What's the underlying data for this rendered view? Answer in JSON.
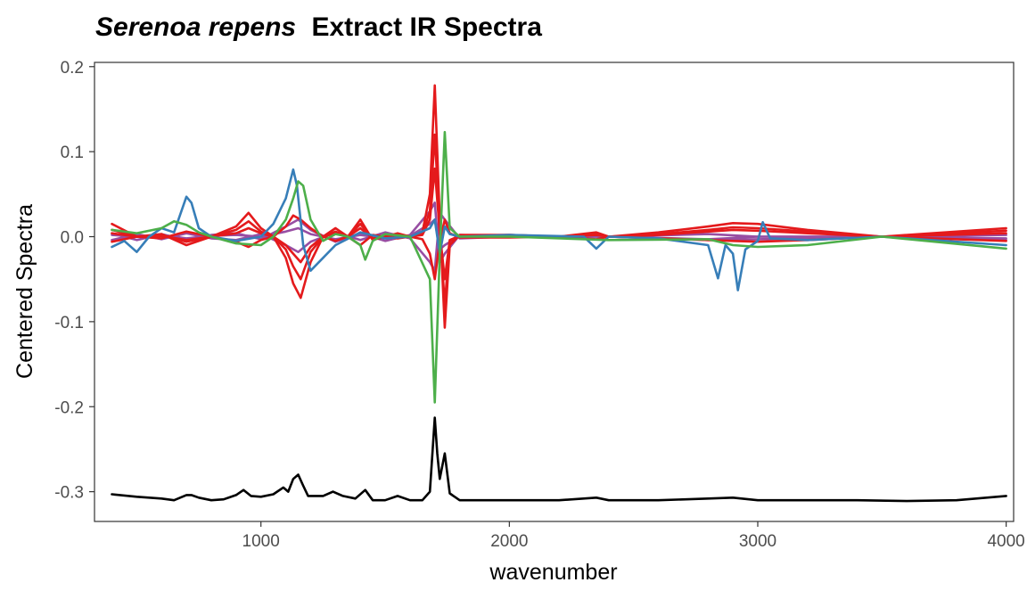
{
  "chart_data": {
    "type": "line",
    "title": {
      "italic": "Serenoa repens",
      "rest": "Extract IR Spectra"
    },
    "xlabel": "wavenumber",
    "ylabel": "Centered Spectra",
    "xlim": [
      330,
      4030
    ],
    "ylim": [
      -0.335,
      0.205
    ],
    "x_ticks": [
      1000,
      2000,
      3000,
      4000
    ],
    "x_tick_labels": [
      "1000",
      "2000",
      "3000",
      "4000"
    ],
    "y_ticks": [
      0.2,
      0.1,
      0.0,
      -0.1,
      -0.2,
      -0.3
    ],
    "y_tick_labels": [
      "0.2",
      "0.1",
      "0.0",
      "-0.1",
      "-0.2",
      "-0.3"
    ],
    "grid": false,
    "legend": "none",
    "palette": {
      "red": "#e41a1c",
      "blue": "#377eb8",
      "green": "#4daf4a",
      "purple": "#984ea3",
      "black": "#000000"
    },
    "series": [
      {
        "color": "purple",
        "x": [
          400,
          500,
          600,
          700,
          800,
          900,
          1000,
          1100,
          1150,
          1200,
          1300,
          1400,
          1500,
          1600,
          1680,
          1700,
          1720,
          1740,
          1800,
          2000,
          2400,
          2800,
          3000,
          3500,
          4000
        ],
        "y": [
          0.004,
          -0.004,
          0.003,
          -0.004,
          0.002,
          0.004,
          -0.003,
          0.012,
          0.02,
          0.008,
          -0.006,
          0.004,
          -0.005,
          0.002,
          0.03,
          0.04,
          -0.03,
          -0.02,
          0.002,
          0.0,
          0.0,
          0.003,
          0.0,
          0.0,
          0.002
        ]
      },
      {
        "color": "purple",
        "x": [
          400,
          500,
          600,
          700,
          800,
          900,
          1000,
          1100,
          1150,
          1200,
          1300,
          1400,
          1500,
          1600,
          1680,
          1700,
          1720,
          1740,
          1800,
          2000,
          2400,
          2800,
          3000,
          3500,
          4000
        ],
        "y": [
          -0.004,
          0.003,
          -0.003,
          0.004,
          -0.002,
          -0.004,
          0.003,
          -0.01,
          -0.018,
          -0.006,
          0.005,
          -0.004,
          0.005,
          -0.002,
          -0.03,
          -0.04,
          0.028,
          0.02,
          -0.002,
          0.0,
          0.0,
          -0.003,
          0.0,
          0.0,
          -0.002
        ]
      },
      {
        "color": "purple",
        "x": [
          400,
          500,
          600,
          700,
          800,
          900,
          1000,
          1100,
          1150,
          1200,
          1300,
          1400,
          1500,
          1600,
          1680,
          1700,
          1720,
          1740,
          1800,
          2000,
          2400,
          2800,
          3000,
          3500,
          4000
        ],
        "y": [
          0.002,
          0.0,
          0.002,
          -0.002,
          0.001,
          0.002,
          0.0,
          0.006,
          0.01,
          0.003,
          -0.003,
          0.002,
          -0.002,
          0.001,
          0.015,
          0.02,
          -0.015,
          -0.01,
          0.001,
          0.0,
          0.0,
          -0.004,
          -0.003,
          0.0,
          -0.004
        ]
      },
      {
        "color": "red",
        "x": [
          400,
          500,
          600,
          700,
          800,
          900,
          950,
          1000,
          1050,
          1100,
          1130,
          1160,
          1200,
          1250,
          1300,
          1350,
          1400,
          1450,
          1500,
          1550,
          1600,
          1650,
          1680,
          1700,
          1720,
          1740,
          1760,
          1800,
          2000,
          2200,
          2350,
          2400,
          2600,
          2800,
          2900,
          3000,
          3200,
          3500,
          4000
        ],
        "y": [
          0.015,
          0.0,
          0.003,
          -0.01,
          0.0,
          0.012,
          0.028,
          0.01,
          0.0,
          -0.025,
          -0.055,
          -0.072,
          -0.03,
          0.0,
          0.01,
          0.0,
          0.02,
          -0.004,
          0.0,
          0.004,
          0.0,
          0.005,
          0.05,
          0.178,
          0.02,
          -0.107,
          -0.01,
          0.002,
          0.002,
          0.0,
          0.005,
          0.0,
          0.005,
          0.012,
          0.016,
          0.015,
          0.008,
          0.0,
          0.01
        ]
      },
      {
        "color": "red",
        "x": [
          400,
          500,
          600,
          700,
          800,
          900,
          950,
          1000,
          1050,
          1100,
          1130,
          1160,
          1200,
          1250,
          1300,
          1350,
          1400,
          1450,
          1500,
          1550,
          1600,
          1650,
          1680,
          1700,
          1720,
          1740,
          1760,
          1800,
          2000,
          2200,
          2350,
          2400,
          2600,
          2800,
          2900,
          3000,
          3200,
          3500,
          4000
        ],
        "y": [
          0.008,
          0.0,
          0.002,
          -0.006,
          0.0,
          0.008,
          0.018,
          0.006,
          0.0,
          -0.015,
          -0.035,
          -0.05,
          -0.018,
          0.0,
          0.006,
          0.0,
          0.015,
          -0.003,
          0.0,
          0.003,
          0.0,
          0.003,
          0.03,
          0.12,
          0.01,
          -0.08,
          -0.005,
          0.001,
          0.002,
          0.0,
          0.003,
          0.0,
          0.003,
          0.008,
          0.011,
          0.01,
          0.006,
          0.0,
          0.007
        ]
      },
      {
        "color": "red",
        "x": [
          400,
          500,
          600,
          700,
          800,
          900,
          950,
          1000,
          1050,
          1100,
          1130,
          1160,
          1200,
          1250,
          1300,
          1350,
          1400,
          1450,
          1500,
          1550,
          1600,
          1650,
          1680,
          1700,
          1720,
          1740,
          1760,
          1800,
          2000,
          2200,
          2350,
          2400,
          2600,
          2800,
          2900,
          3000,
          3200,
          3500,
          4000
        ],
        "y": [
          -0.006,
          0.0,
          -0.002,
          0.006,
          0.0,
          -0.006,
          -0.012,
          -0.004,
          0.0,
          0.012,
          0.025,
          0.02,
          0.01,
          0.0,
          -0.005,
          0.0,
          -0.01,
          0.002,
          0.0,
          -0.002,
          0.0,
          -0.003,
          -0.02,
          -0.05,
          -0.005,
          0.02,
          0.004,
          -0.001,
          -0.001,
          0.0,
          -0.003,
          0.0,
          -0.002,
          -0.004,
          -0.005,
          -0.006,
          -0.004,
          0.0,
          -0.005
        ]
      },
      {
        "color": "red",
        "x": [
          400,
          500,
          600,
          700,
          800,
          900,
          950,
          1000,
          1050,
          1100,
          1130,
          1160,
          1200,
          1250,
          1300,
          1350,
          1400,
          1450,
          1500,
          1550,
          1600,
          1650,
          1680,
          1700,
          1720,
          1740,
          1760,
          1800,
          2000,
          2200,
          2350,
          2400,
          2600,
          2800,
          2900,
          3000,
          3200,
          3500,
          4000
        ],
        "y": [
          0.004,
          0.0,
          0.001,
          -0.004,
          0.0,
          0.004,
          0.01,
          0.004,
          0.0,
          -0.01,
          -0.02,
          -0.03,
          -0.012,
          0.0,
          0.004,
          0.0,
          0.01,
          -0.002,
          0.0,
          0.002,
          0.0,
          0.002,
          0.02,
          0.08,
          0.005,
          -0.05,
          -0.004,
          0.001,
          0.001,
          0.0,
          0.002,
          0.0,
          0.002,
          0.006,
          0.008,
          0.007,
          0.004,
          0.0,
          0.004
        ]
      },
      {
        "color": "blue",
        "x": [
          400,
          450,
          500,
          550,
          600,
          650,
          700,
          720,
          750,
          800,
          900,
          1000,
          1050,
          1100,
          1130,
          1145,
          1170,
          1200,
          1300,
          1400,
          1500,
          1600,
          1680,
          1700,
          1720,
          1740,
          1760,
          1800,
          2000,
          2300,
          2350,
          2400,
          2600,
          2800,
          2840,
          2870,
          2900,
          2920,
          2950,
          3000,
          3020,
          3050,
          3200,
          3500,
          4000
        ],
        "y": [
          -0.012,
          -0.005,
          -0.018,
          0.0,
          0.01,
          0.005,
          0.047,
          0.04,
          0.01,
          0.0,
          -0.005,
          0.0,
          0.015,
          0.045,
          0.079,
          0.06,
          -0.01,
          -0.04,
          -0.01,
          0.005,
          -0.002,
          0.0,
          0.01,
          0.02,
          -0.02,
          0.012,
          0.003,
          0.0,
          0.002,
          0.0,
          -0.014,
          0.0,
          -0.002,
          -0.01,
          -0.049,
          -0.01,
          -0.02,
          -0.063,
          -0.015,
          -0.005,
          0.017,
          -0.002,
          -0.004,
          0.0,
          -0.01
        ]
      },
      {
        "color": "green",
        "x": [
          400,
          500,
          600,
          650,
          700,
          750,
          800,
          900,
          1000,
          1050,
          1100,
          1130,
          1150,
          1170,
          1200,
          1250,
          1300,
          1350,
          1400,
          1420,
          1450,
          1500,
          1600,
          1680,
          1700,
          1720,
          1740,
          1760,
          1800,
          2000,
          2400,
          2800,
          2900,
          3000,
          3200,
          3500,
          4000
        ],
        "y": [
          0.008,
          0.004,
          0.01,
          0.018,
          0.014,
          0.005,
          0.0,
          -0.008,
          -0.01,
          0.0,
          0.02,
          0.045,
          0.065,
          0.06,
          0.02,
          -0.005,
          0.003,
          0.0,
          -0.01,
          -0.027,
          -0.005,
          0.003,
          0.0,
          -0.05,
          -0.195,
          -0.02,
          0.123,
          0.01,
          0.0,
          0.0,
          -0.004,
          -0.003,
          -0.01,
          -0.012,
          -0.01,
          0.0,
          -0.014
        ]
      },
      {
        "color": "black",
        "x": [
          400,
          500,
          600,
          650,
          700,
          720,
          750,
          800,
          850,
          900,
          930,
          960,
          1000,
          1050,
          1090,
          1110,
          1130,
          1150,
          1170,
          1190,
          1250,
          1290,
          1330,
          1380,
          1420,
          1450,
          1500,
          1550,
          1600,
          1650,
          1680,
          1700,
          1710,
          1720,
          1740,
          1760,
          1800,
          2000,
          2200,
          2350,
          2400,
          2600,
          2800,
          2900,
          3000,
          3200,
          3400,
          3600,
          3800,
          4000
        ],
        "y": [
          -0.303,
          -0.306,
          -0.308,
          -0.31,
          -0.304,
          -0.304,
          -0.307,
          -0.31,
          -0.309,
          -0.304,
          -0.298,
          -0.305,
          -0.306,
          -0.303,
          -0.295,
          -0.3,
          -0.285,
          -0.28,
          -0.293,
          -0.305,
          -0.305,
          -0.3,
          -0.305,
          -0.308,
          -0.298,
          -0.31,
          -0.31,
          -0.305,
          -0.31,
          -0.31,
          -0.3,
          -0.213,
          -0.255,
          -0.285,
          -0.255,
          -0.302,
          -0.31,
          -0.31,
          -0.31,
          -0.307,
          -0.31,
          -0.31,
          -0.308,
          -0.307,
          -0.31,
          -0.31,
          -0.31,
          -0.311,
          -0.31,
          -0.305
        ]
      }
    ]
  }
}
